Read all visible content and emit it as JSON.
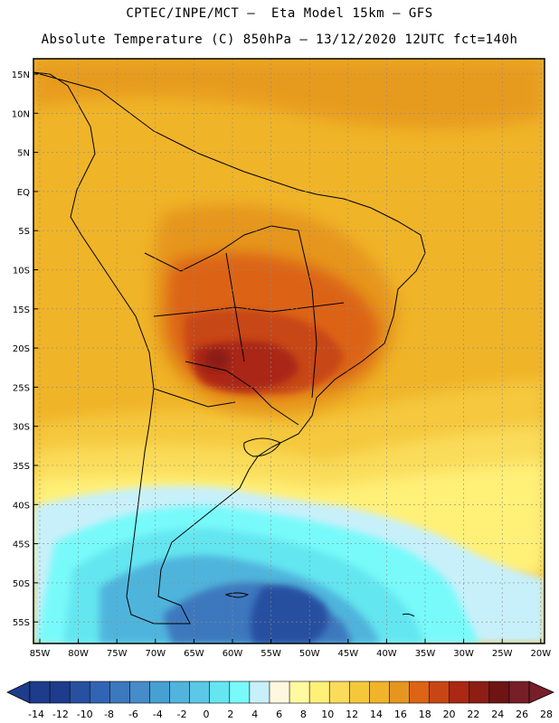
{
  "header": {
    "line1": "CPTEC/INPE/MCT –  Eta Model 15km – GFS",
    "line2": "Absolute Temperature (C) 850hPa – 13/12/2020 12UTC fct=140h"
  },
  "map": {
    "lat_labels": [
      "15N",
      "10N",
      "5N",
      "EQ",
      "5S",
      "10S",
      "15S",
      "20S",
      "25S",
      "30S",
      "35S",
      "40S",
      "45S",
      "50S",
      "55S"
    ],
    "lon_labels": [
      "85W",
      "80W",
      "75W",
      "70W",
      "65W",
      "60W",
      "55W",
      "50W",
      "45W",
      "40W",
      "35W",
      "30W",
      "25W",
      "20W"
    ],
    "field_colors": {
      "ocean_warm": "#f0b428",
      "land_hot": "#dc5a14"
    }
  },
  "colorbar": {
    "labels": [
      "-14",
      "-12",
      "-10",
      "-8",
      "-6",
      "-4",
      "-2",
      "0",
      "2",
      "4",
      "6",
      "8",
      "10",
      "12",
      "14",
      "16",
      "18",
      "20",
      "22",
      "24",
      "26",
      "28"
    ],
    "colors": [
      "#1e3c8c",
      "#1e3c8c",
      "#2850a0",
      "#3264b4",
      "#3c78be",
      "#468cc8",
      "#46a0d2",
      "#50b4dc",
      "#5ac8e6",
      "#64e6f0",
      "#78fafa",
      "#c8f0fa",
      "#fff8e0",
      "#fffaa0",
      "#fff078",
      "#fadc5a",
      "#f5c83c",
      "#f0b428",
      "#e6961e",
      "#dc6414",
      "#c84614",
      "#aa2814",
      "#8c1e14",
      "#6e1414",
      "#781e28"
    ]
  }
}
